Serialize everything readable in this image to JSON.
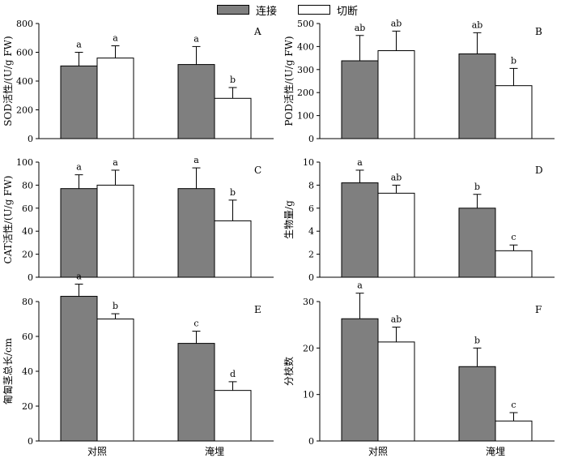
{
  "legend": [
    {
      "label": "连接",
      "color": "#7f7f7f"
    },
    {
      "label": "切断",
      "color": "#ffffff"
    }
  ],
  "colors": {
    "connected": "#7f7f7f",
    "cut": "#ffffff",
    "axis": "#000000"
  },
  "chart_data": [
    {
      "panel": "A",
      "type": "bar",
      "categories": [
        "对照",
        "淹埋"
      ],
      "ylabel": "SOD活性/(U/g FW)",
      "ylim": [
        0,
        800
      ],
      "yticks": [
        0,
        200,
        400,
        600,
        800
      ],
      "series": [
        {
          "name": "连接",
          "values": [
            505,
            515
          ],
          "errors": [
            95,
            125
          ],
          "letters": [
            "a",
            "a"
          ]
        },
        {
          "name": "切断",
          "values": [
            560,
            280
          ],
          "errors": [
            85,
            75
          ],
          "letters": [
            "a",
            "b"
          ]
        }
      ]
    },
    {
      "panel": "B",
      "type": "bar",
      "categories": [
        "对照",
        "淹埋"
      ],
      "ylabel": "POD活性/(U/g FW)",
      "ylim": [
        0,
        500
      ],
      "yticks": [
        0,
        100,
        200,
        300,
        400,
        500
      ],
      "series": [
        {
          "name": "连接",
          "values": [
            338,
            368
          ],
          "errors": [
            110,
            92
          ],
          "letters": [
            "ab",
            "ab"
          ]
        },
        {
          "name": "切断",
          "values": [
            382,
            230
          ],
          "errors": [
            85,
            75
          ],
          "letters": [
            "ab",
            "b"
          ]
        }
      ]
    },
    {
      "panel": "C",
      "type": "bar",
      "categories": [
        "对照",
        "淹埋"
      ],
      "ylabel": "CAT活性/(U/g FW)",
      "ylim": [
        0,
        100
      ],
      "yticks": [
        0,
        20,
        40,
        60,
        80,
        100
      ],
      "series": [
        {
          "name": "连接",
          "values": [
            77,
            77
          ],
          "errors": [
            12,
            18
          ],
          "letters": [
            "a",
            "a"
          ]
        },
        {
          "name": "切断",
          "values": [
            80,
            49
          ],
          "errors": [
            13,
            18
          ],
          "letters": [
            "a",
            "b"
          ]
        }
      ]
    },
    {
      "panel": "D",
      "type": "bar",
      "categories": [
        "对照",
        "淹埋"
      ],
      "ylabel": "生物量/g",
      "ylim": [
        0,
        10
      ],
      "yticks": [
        0,
        2,
        4,
        6,
        8,
        10
      ],
      "series": [
        {
          "name": "连接",
          "values": [
            8.2,
            6.0
          ],
          "errors": [
            1.1,
            1.2
          ],
          "letters": [
            "a",
            "b"
          ]
        },
        {
          "name": "切断",
          "values": [
            7.3,
            2.3
          ],
          "errors": [
            0.7,
            0.5
          ],
          "letters": [
            "ab",
            "c"
          ]
        }
      ]
    },
    {
      "panel": "E",
      "type": "bar",
      "categories": [
        "对照",
        "淹埋"
      ],
      "ylabel": "匍匐茎总长/cm",
      "ylim": [
        0,
        90
      ],
      "yticks": [
        0,
        20,
        40,
        60,
        80
      ],
      "series": [
        {
          "name": "连接",
          "values": [
            83,
            56
          ],
          "errors": [
            7,
            7
          ],
          "letters": [
            "a",
            "c"
          ]
        },
        {
          "name": "切断",
          "values": [
            70,
            29
          ],
          "errors": [
            3,
            5
          ],
          "letters": [
            "b",
            "d"
          ]
        }
      ]
    },
    {
      "panel": "F",
      "type": "bar",
      "categories": [
        "对照",
        "淹埋"
      ],
      "ylabel": "分枝数",
      "ylim": [
        0,
        35
      ],
      "yticks": [
        0,
        10,
        20,
        30
      ],
      "series": [
        {
          "name": "连接",
          "values": [
            26.3,
            16.0
          ],
          "errors": [
            5.5,
            4.0
          ],
          "letters": [
            "a",
            "b"
          ]
        },
        {
          "name": "切断",
          "values": [
            21.3,
            4.3
          ],
          "errors": [
            3.2,
            1.8
          ],
          "letters": [
            "ab",
            "c"
          ]
        }
      ]
    }
  ]
}
